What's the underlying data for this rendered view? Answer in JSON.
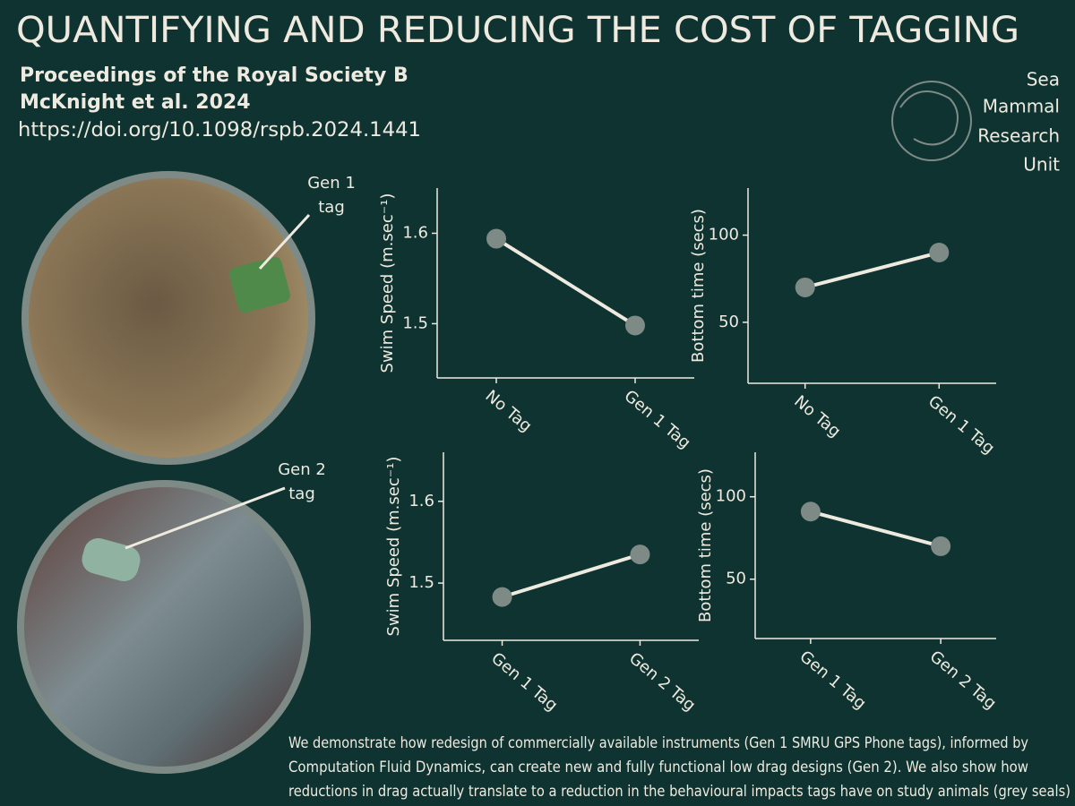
{
  "title": "QUANTIFYING AND REDUCING THE COST OF TAGGING",
  "citation": {
    "journal": "Proceedings of  the Royal Society B",
    "authors": "McKnight et al. 2024",
    "doi": "https://doi.org/10.1098/rspb.2024.1441"
  },
  "logo": {
    "lines": [
      "Sea",
      "Mammal",
      "Research",
      "Unit"
    ]
  },
  "annotations": [
    {
      "lines": [
        "Gen 1",
        "tag"
      ]
    },
    {
      "lines": [
        "Gen 2",
        "tag"
      ]
    }
  ],
  "caption": {
    "lines": [
      "We demonstrate how redesign of commercially available instruments (Gen 1 SMRU GPS Phone tags), informed by",
      "Computation Fluid Dynamics, can create new and fully functional low drag designs (Gen 2). We also show how",
      "reductions in drag actually translate to a reduction in the behavioural impacts tags have on study animals (grey seals)"
    ]
  },
  "chart_data": [
    {
      "type": "line",
      "y_label": "Swim Speed (m.sec⁻¹)",
      "categories": [
        "No Tag",
        "Gen 1 Tag"
      ],
      "values": [
        1.594,
        1.498
      ],
      "color": "#efeadf",
      "marker_color": "#7e8a85",
      "ylim": [
        1.44,
        1.65
      ],
      "yticks": [
        1.5,
        1.6
      ]
    },
    {
      "type": "line",
      "y_label": "Bottom time (secs)",
      "categories": [
        "No Tag",
        "Gen 1 Tag"
      ],
      "values": [
        70,
        90
      ],
      "color": "#efeadf",
      "marker_color": "#7e8a85",
      "ylim": [
        15,
        127
      ],
      "yticks": [
        50,
        100
      ]
    },
    {
      "type": "line",
      "y_label": "Swim Speed (m.sec⁻¹)",
      "categories": [
        "Gen 1 Tag",
        "Gen 2 Tag"
      ],
      "values": [
        1.483,
        1.535
      ],
      "color": "#efeadf",
      "marker_color": "#7e8a85",
      "ylim": [
        1.43,
        1.66
      ],
      "yticks": [
        1.5,
        1.6
      ]
    },
    {
      "type": "line",
      "y_label": "Bottom time (secs)",
      "categories": [
        "Gen 1 Tag",
        "Gen 2 Tag"
      ],
      "values": [
        91,
        70
      ],
      "color": "#efeadf",
      "marker_color": "#7e8a85",
      "ylim": [
        14,
        127
      ],
      "yticks": [
        50,
        100
      ]
    }
  ]
}
